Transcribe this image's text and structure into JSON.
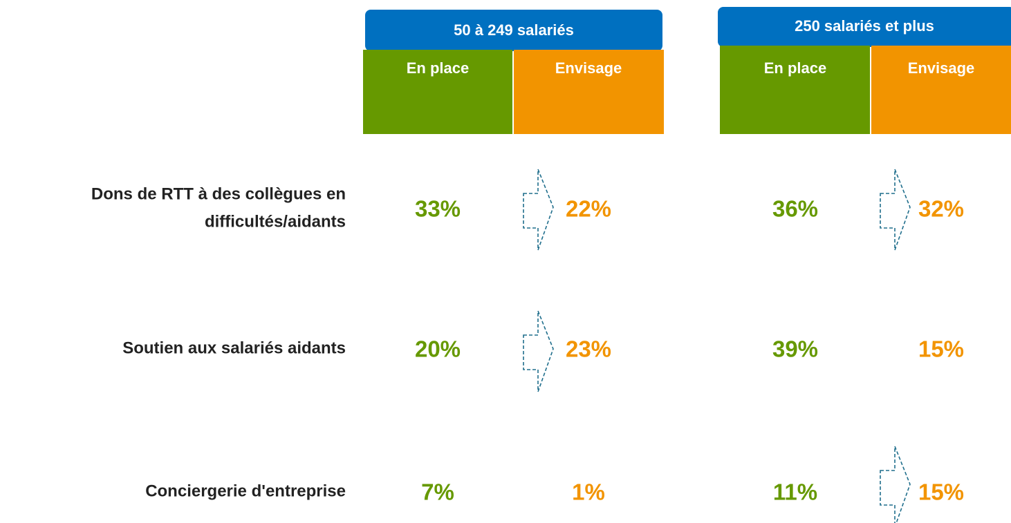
{
  "groups": [
    {
      "title": "50 à 249 salariés",
      "columns": [
        "En place",
        "Envisage"
      ]
    },
    {
      "title": "250 salariés et plus",
      "columns": [
        "En place",
        "Envisage"
      ]
    }
  ],
  "rows": [
    {
      "label": [
        "Dons de RTT à des collègues en",
        "difficultés/aidants"
      ],
      "values": [
        "33%",
        "22%",
        "36%",
        "32%"
      ]
    },
    {
      "label": [
        "Soutien aux salariés aidants"
      ],
      "values": [
        "20%",
        "23%",
        "39%",
        "15%"
      ]
    },
    {
      "label": [
        "Conciergerie d'entreprise"
      ],
      "values": [
        "7%",
        "1%",
        "11%",
        "15%"
      ]
    }
  ]
}
